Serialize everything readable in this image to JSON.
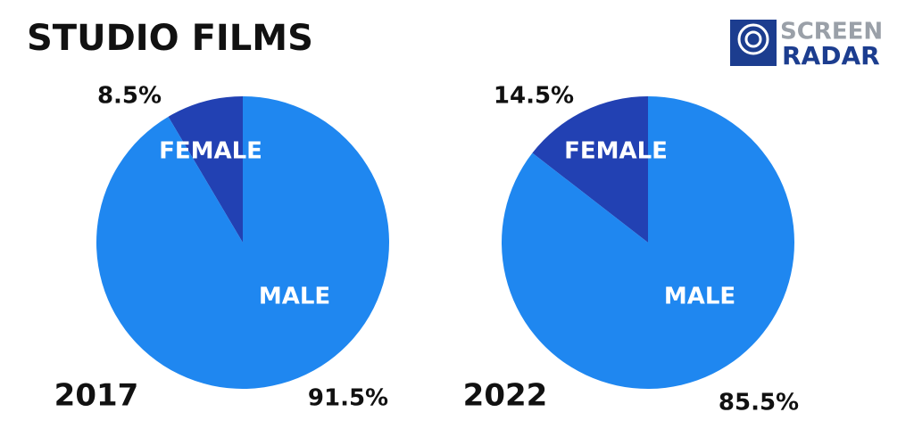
{
  "title": "STUDIO FILMS",
  "logo": {
    "top": "SCREEN",
    "bottom": "RADAR"
  },
  "chart_data": [
    {
      "type": "pie",
      "label": "2017",
      "categories": [
        "FEMALE",
        "MALE"
      ],
      "values": [
        8.5,
        91.5
      ],
      "value_labels": [
        "8.5%",
        "91.5%"
      ],
      "colors": [
        "#2241b3",
        "#1f87f0"
      ]
    },
    {
      "type": "pie",
      "label": "2022",
      "categories": [
        "FEMALE",
        "MALE"
      ],
      "values": [
        14.5,
        85.5
      ],
      "value_labels": [
        "14.5%",
        "85.5%"
      ],
      "colors": [
        "#2241b3",
        "#1f87f0"
      ]
    }
  ]
}
